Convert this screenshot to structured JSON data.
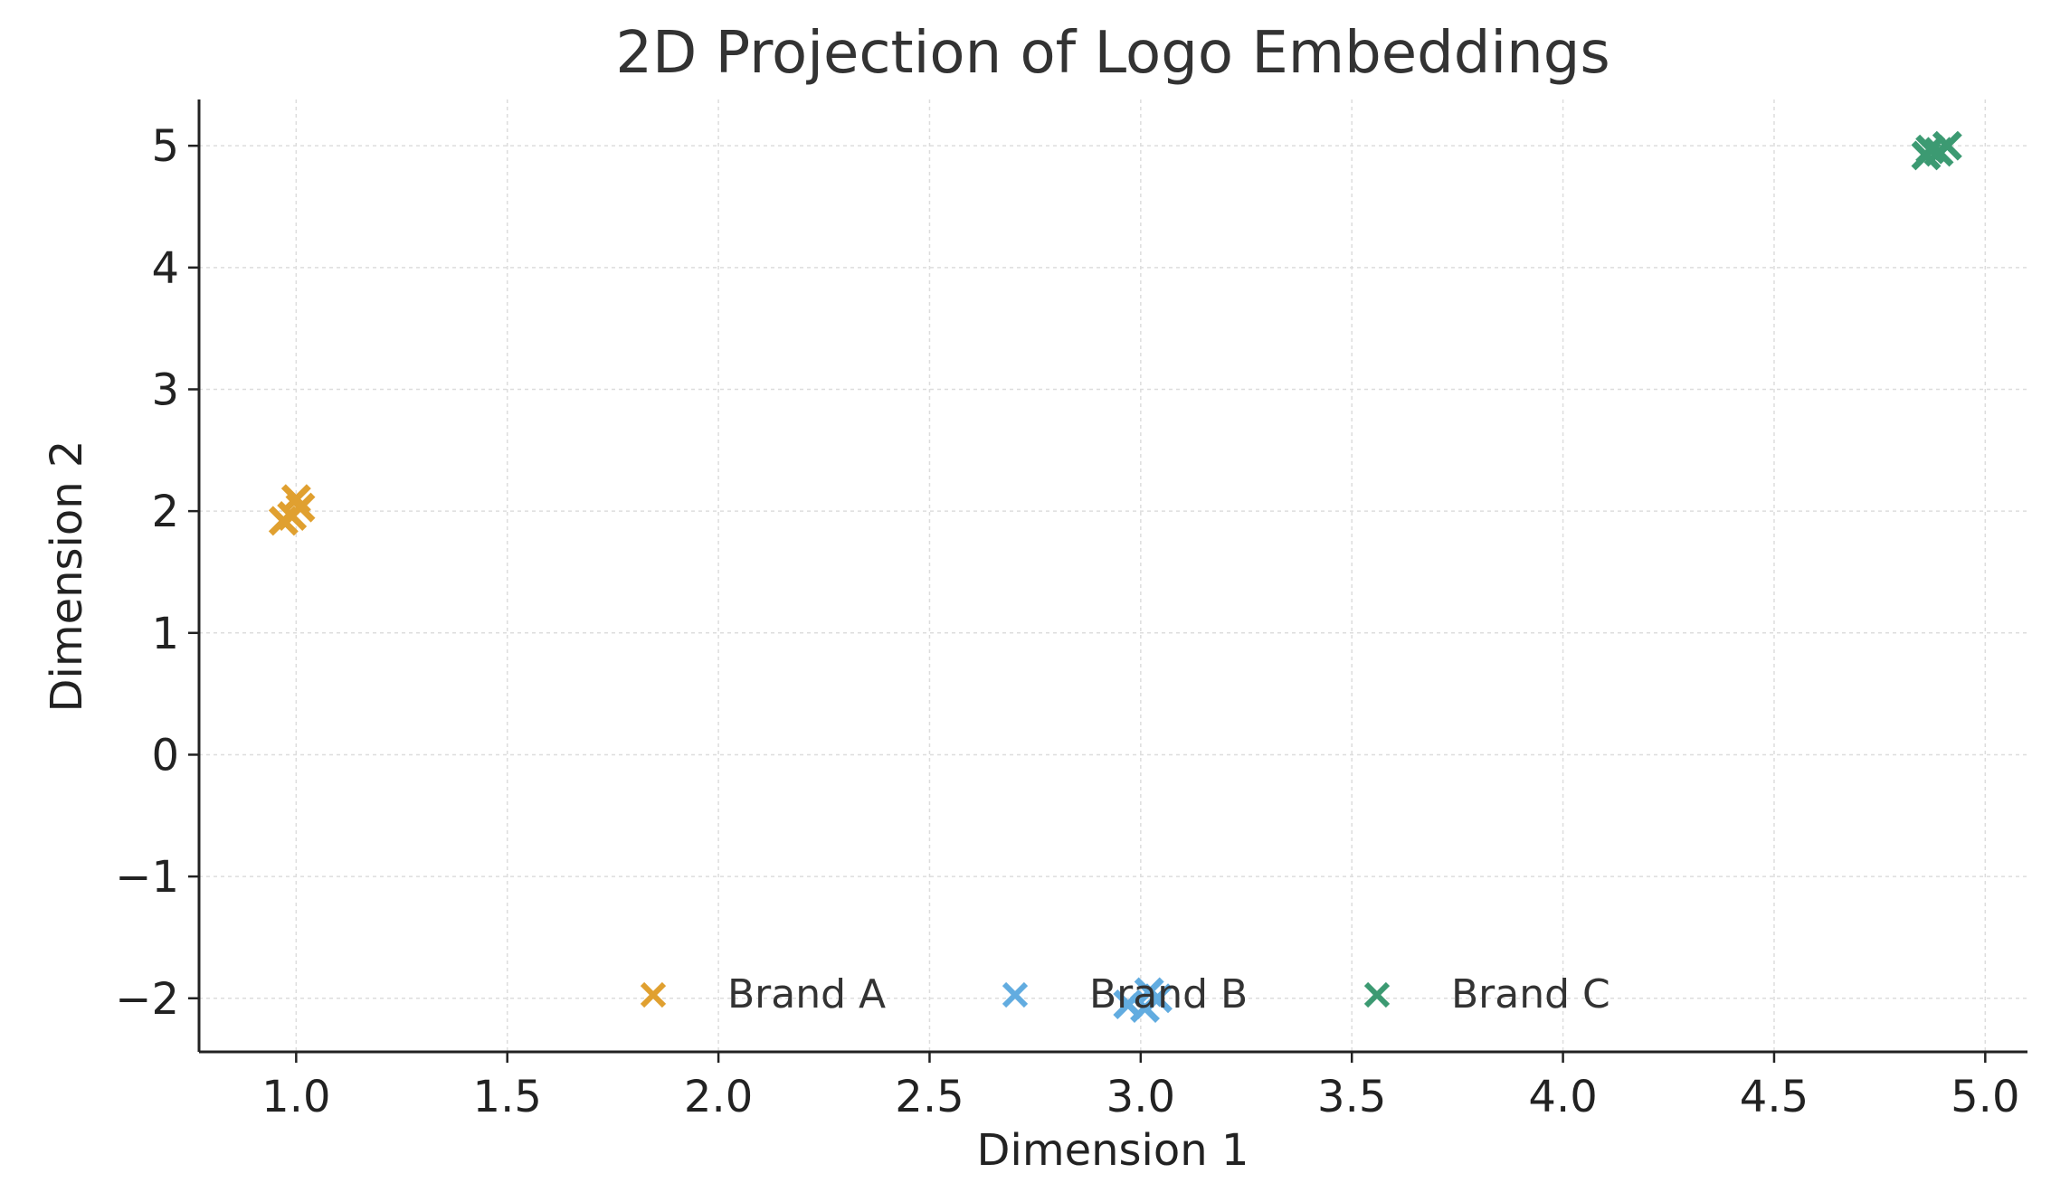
{
  "chart_data": {
    "type": "scatter",
    "title": "2D Projection of Logo Embeddings",
    "xlabel": "Dimension 1",
    "ylabel": "Dimension 2",
    "xlim": [
      0.77,
      5.1
    ],
    "ylim": [
      -2.44,
      5.38
    ],
    "xticks": [
      "1.0",
      "1.5",
      "2.0",
      "2.5",
      "3.0",
      "3.5",
      "4.0",
      "4.5",
      "5.0"
    ],
    "yticks": [
      "5",
      "4",
      "3",
      "2",
      "1",
      "0",
      "−1",
      "−2"
    ],
    "grid": true,
    "legend_placement": "lower-center",
    "marker": "x",
    "series": [
      {
        "name": "Brand A",
        "color": "#E0A030",
        "points": [
          [
            0.97,
            1.92
          ],
          [
            0.99,
            1.96
          ],
          [
            1.0,
            2.1
          ],
          [
            1.01,
            2.03
          ]
        ]
      },
      {
        "name": "Brand B",
        "color": "#62ACE0",
        "points": [
          [
            2.97,
            -2.05
          ],
          [
            3.02,
            -1.95
          ],
          [
            3.01,
            -2.08
          ],
          [
            3.04,
            -2.0
          ]
        ]
      },
      {
        "name": "Brand C",
        "color": "#3C9A72",
        "points": [
          [
            4.86,
            4.92
          ],
          [
            4.87,
            4.97
          ],
          [
            4.89,
            4.95
          ],
          [
            4.91,
            5.0
          ]
        ]
      }
    ]
  }
}
